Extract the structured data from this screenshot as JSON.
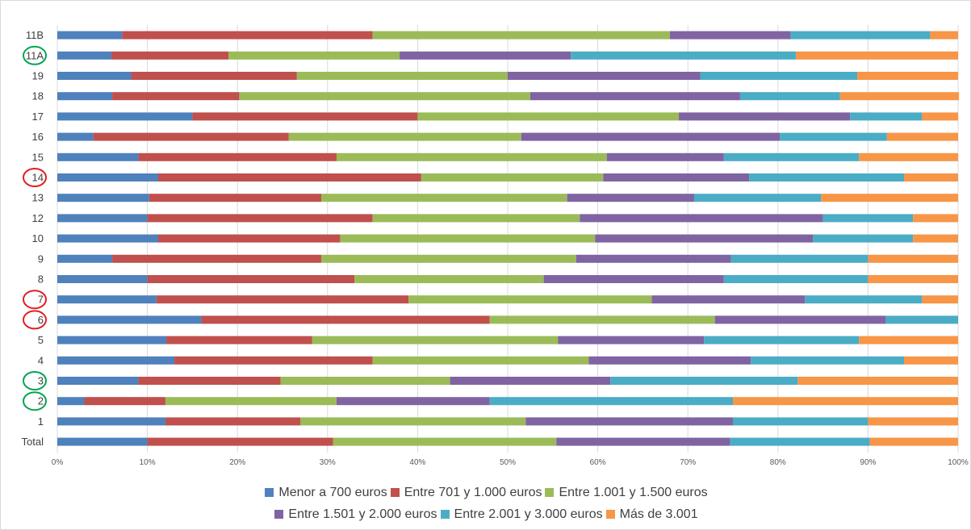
{
  "chart_data": {
    "type": "bar",
    "orientation": "horizontal",
    "stacked": "percent",
    "categories": [
      "11B",
      "11A",
      "19",
      "18",
      "17",
      "16",
      "15",
      "14",
      "13",
      "12",
      "10",
      "9",
      "8",
      "7",
      "6",
      "5",
      "4",
      "3",
      "2",
      "1",
      "Total"
    ],
    "series": [
      {
        "name": "Menor a 700 euros",
        "color": "#4f81bd",
        "values": [
          7.2,
          6.0,
          8.2,
          6.1,
          15.0,
          4.0,
          9.0,
          11.2,
          10.2,
          10.0,
          11.2,
          6.1,
          10.0,
          11.0,
          16.0,
          12.1,
          13.0,
          9.0,
          3.0,
          12.0,
          10.0
        ]
      },
      {
        "name": "Entre 701 y 1.000 euros",
        "color": "#c0504d",
        "values": [
          27.8,
          13.0,
          18.4,
          14.1,
          25.0,
          21.7,
          22.0,
          29.2,
          19.1,
          25.0,
          20.2,
          23.2,
          23.0,
          28.0,
          32.0,
          16.2,
          22.0,
          15.8,
          9.0,
          15.0,
          20.6
        ]
      },
      {
        "name": "Entre 1.001 y 1.500 euros",
        "color": "#9bbb59",
        "values": [
          33.0,
          19.0,
          23.4,
          32.3,
          29.0,
          25.8,
          30.0,
          20.2,
          27.3,
          23.0,
          28.3,
          28.3,
          21.0,
          27.0,
          25.0,
          27.3,
          24.0,
          18.8,
          19.0,
          25.0,
          24.8
        ]
      },
      {
        "name": "Entre 1.501 y 2.000 euros",
        "color": "#8064a2",
        "values": [
          13.4,
          19.0,
          21.4,
          23.3,
          19.0,
          28.7,
          13.0,
          16.2,
          14.1,
          27.0,
          24.2,
          17.2,
          20.0,
          17.0,
          19.0,
          16.2,
          18.0,
          17.8,
          17.0,
          23.0,
          19.3
        ]
      },
      {
        "name": "Entre 2.001 y 3.000 euros",
        "color": "#4bacc6",
        "values": [
          15.5,
          25.0,
          17.4,
          11.1,
          8.0,
          11.9,
          15.0,
          17.2,
          14.1,
          10.0,
          11.1,
          15.2,
          16.0,
          13.0,
          8.0,
          17.2,
          17.0,
          20.8,
          27.0,
          15.0,
          15.5
        ]
      },
      {
        "name": "Más de 3.001",
        "color": "#f79646",
        "values": [
          3.1,
          18.0,
          11.2,
          13.2,
          4.0,
          7.9,
          11.0,
          6.0,
          15.2,
          5.0,
          5.0,
          10.0,
          10.0,
          4.0,
          0.0,
          11.0,
          6.0,
          17.8,
          25.0,
          10.0,
          9.8
        ]
      }
    ],
    "x_ticks": [
      "0%",
      "10%",
      "20%",
      "30%",
      "40%",
      "50%",
      "60%",
      "70%",
      "80%",
      "90%",
      "100%"
    ],
    "xlim": [
      0,
      100
    ],
    "grid": "vertical",
    "legend": "bottom",
    "circled_categories": {
      "green": [
        "11A",
        "3",
        "2"
      ],
      "red": [
        "14",
        "7",
        "6"
      ]
    }
  }
}
